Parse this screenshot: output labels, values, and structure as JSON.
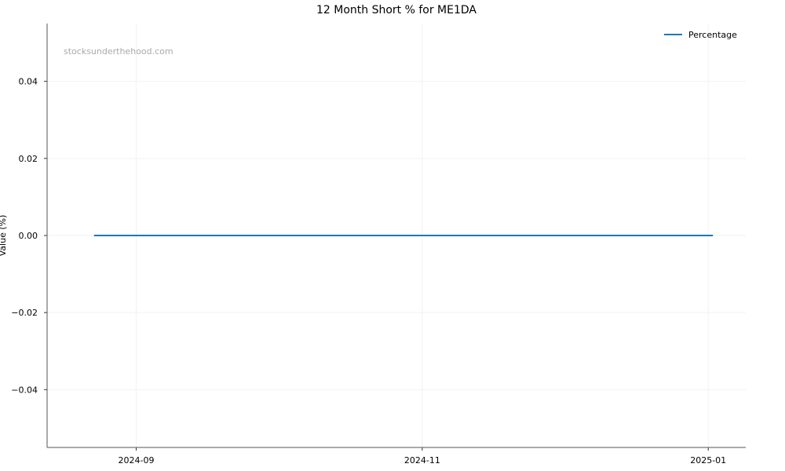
{
  "chart_data": {
    "type": "line",
    "title": "12 Month Short % for ME1DA",
    "xlabel": "",
    "ylabel": "Value (%)",
    "watermark": "stocksunderthehood.com",
    "x_ticks": [
      "2024-09",
      "2024-11",
      "2025-01"
    ],
    "y_ticks": [
      "−0.04",
      "−0.02",
      "0.00",
      "0.02",
      "0.04"
    ],
    "y_tick_values": [
      -0.04,
      -0.02,
      0,
      0.02,
      0.04
    ],
    "ylim": [
      -0.055,
      0.055
    ],
    "xlim": [
      "2024-08-13",
      "2025-01-09"
    ],
    "grid": true,
    "legend_position": "top-right",
    "series": [
      {
        "name": "Percentage",
        "color": "#1f77b4",
        "x": [
          "2024-08-23",
          "2025-01-02"
        ],
        "values": [
          0,
          0
        ]
      }
    ]
  }
}
